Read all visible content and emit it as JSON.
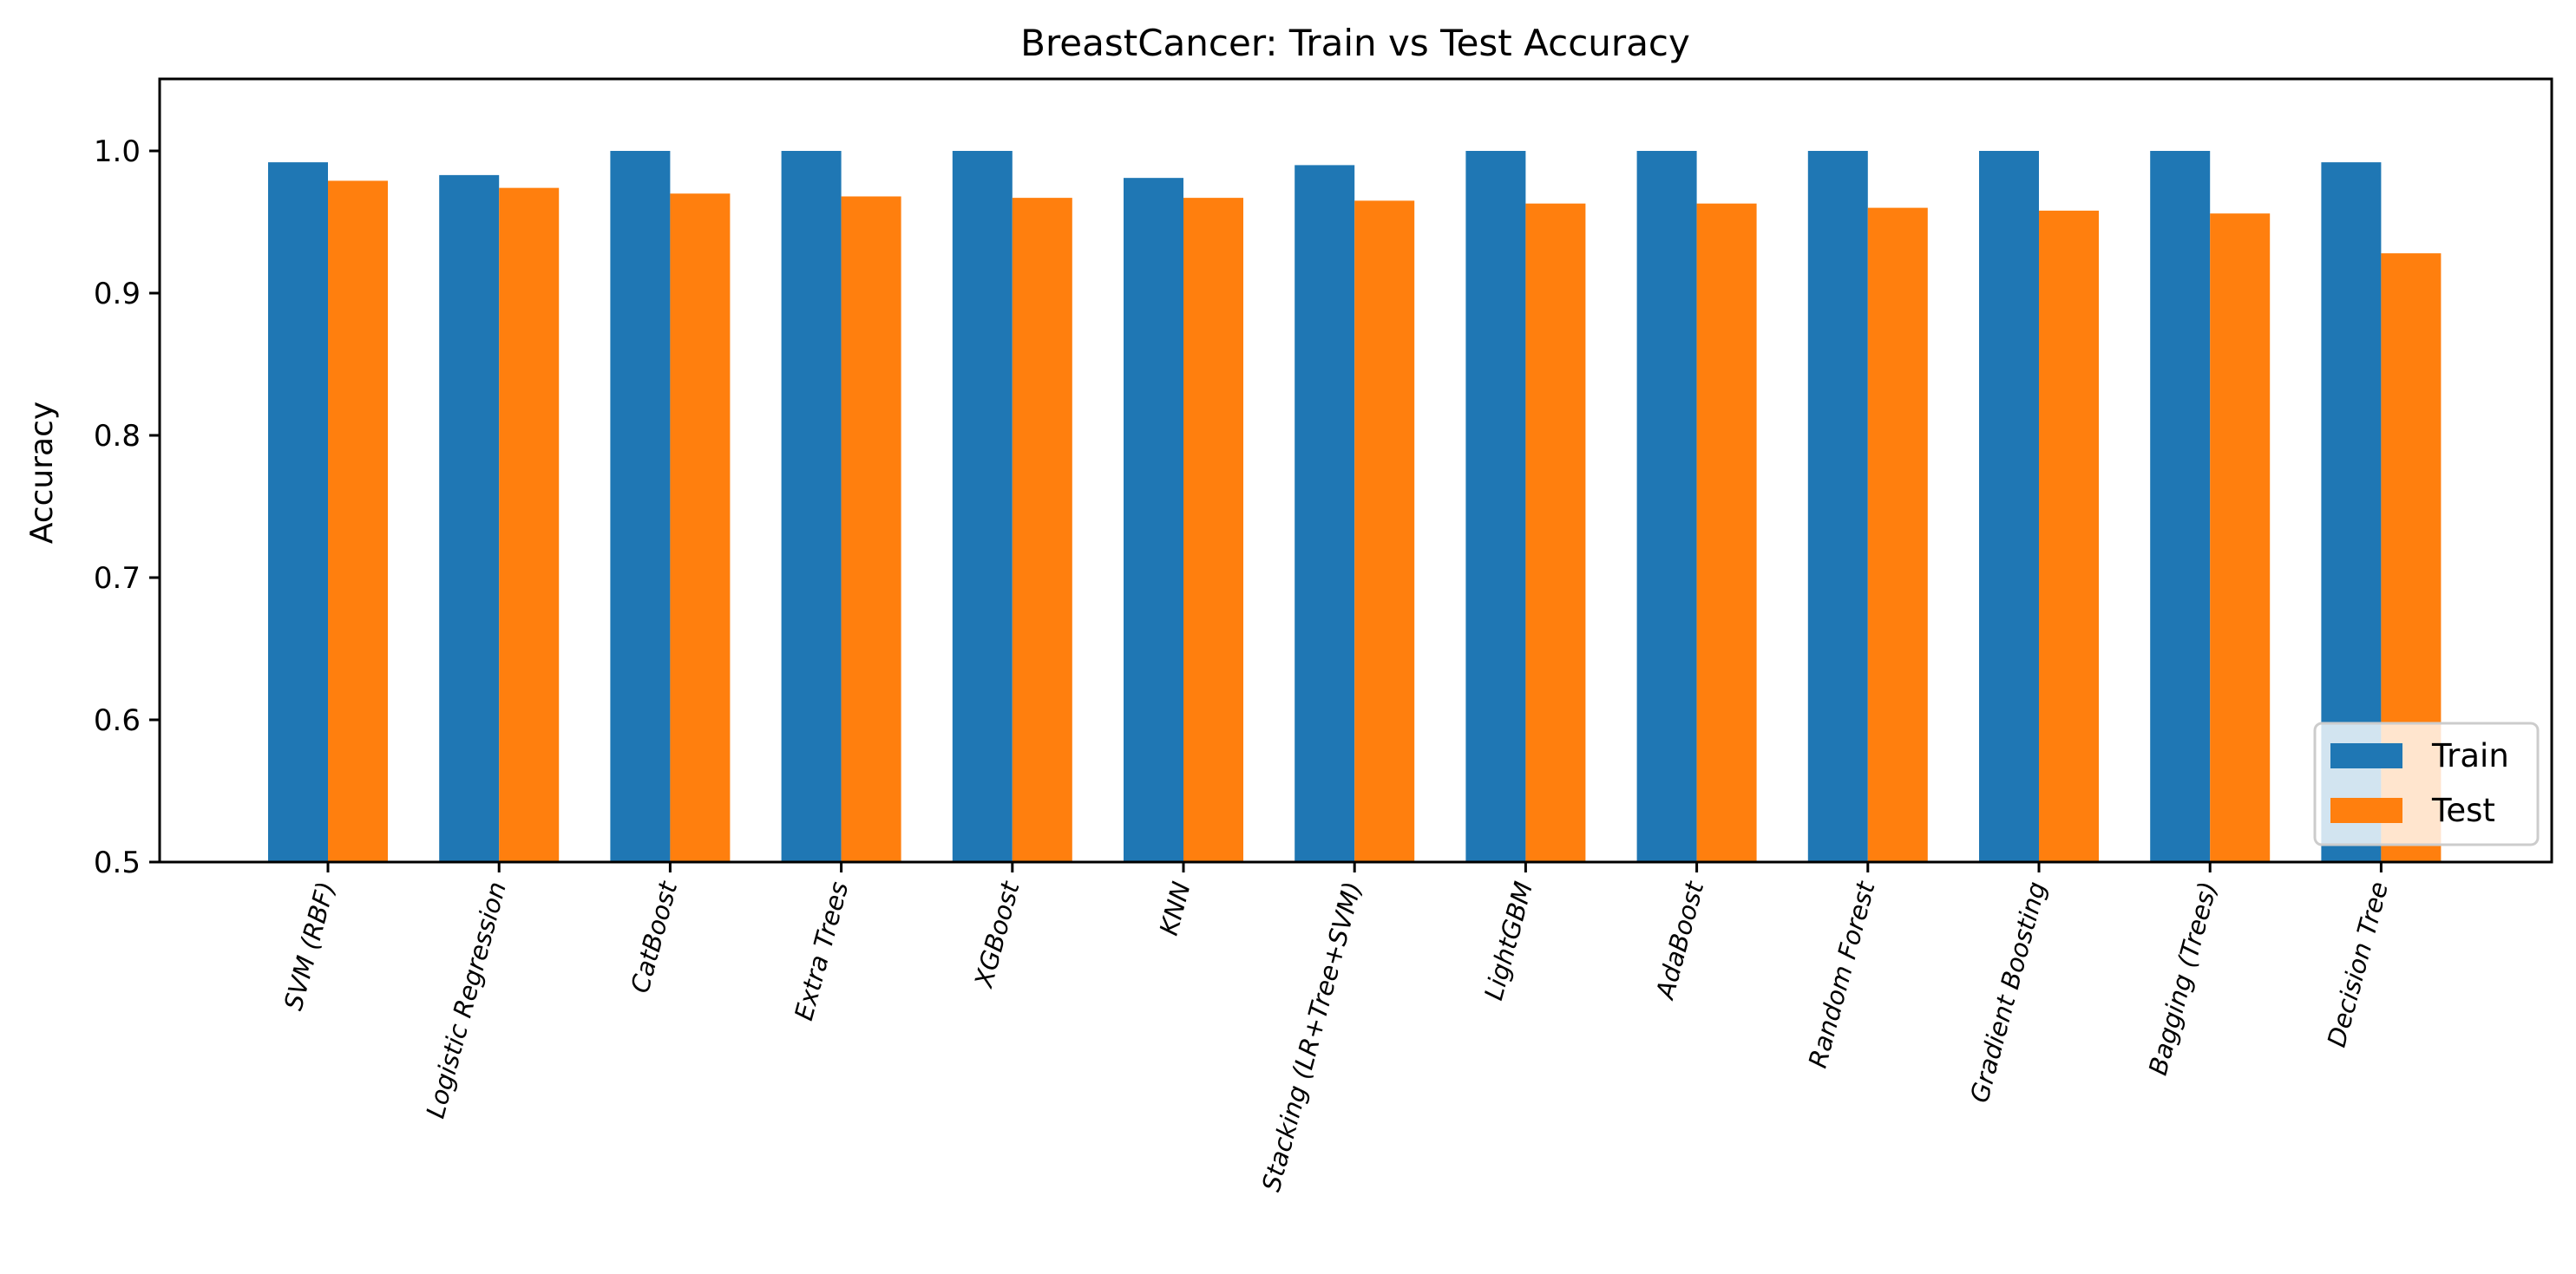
{
  "chart_data": {
    "type": "bar",
    "title": "BreastCancer: Train vs Test Accuracy",
    "xlabel": "",
    "ylabel": "Accuracy",
    "ylim": [
      0.5,
      1.05
    ],
    "yticks": [
      0.5,
      0.6,
      0.7,
      0.8,
      0.9,
      1.0
    ],
    "ytick_labels": [
      "0.5",
      "0.6",
      "0.7",
      "0.8",
      "0.9",
      "1.0"
    ],
    "grid": false,
    "legend_position": "lower right",
    "categories": [
      "SVM (RBF)",
      "Logistic Regression",
      "CatBoost",
      "Extra Trees",
      "XGBoost",
      "KNN",
      "Stacking (LR+Tree+SVM)",
      "LightGBM",
      "AdaBoost",
      "Random Forest",
      "Gradient Boosting",
      "Bagging (Trees)",
      "Decision Tree"
    ],
    "series": [
      {
        "name": "Train",
        "color": "#1f77b4",
        "values": [
          0.992,
          0.983,
          1.0,
          1.0,
          1.0,
          0.981,
          0.99,
          1.0,
          1.0,
          1.0,
          1.0,
          1.0,
          0.992
        ]
      },
      {
        "name": "Test",
        "color": "#ff7f0e",
        "values": [
          0.979,
          0.974,
          0.97,
          0.968,
          0.967,
          0.967,
          0.965,
          0.963,
          0.963,
          0.96,
          0.958,
          0.956,
          0.928
        ]
      }
    ]
  }
}
